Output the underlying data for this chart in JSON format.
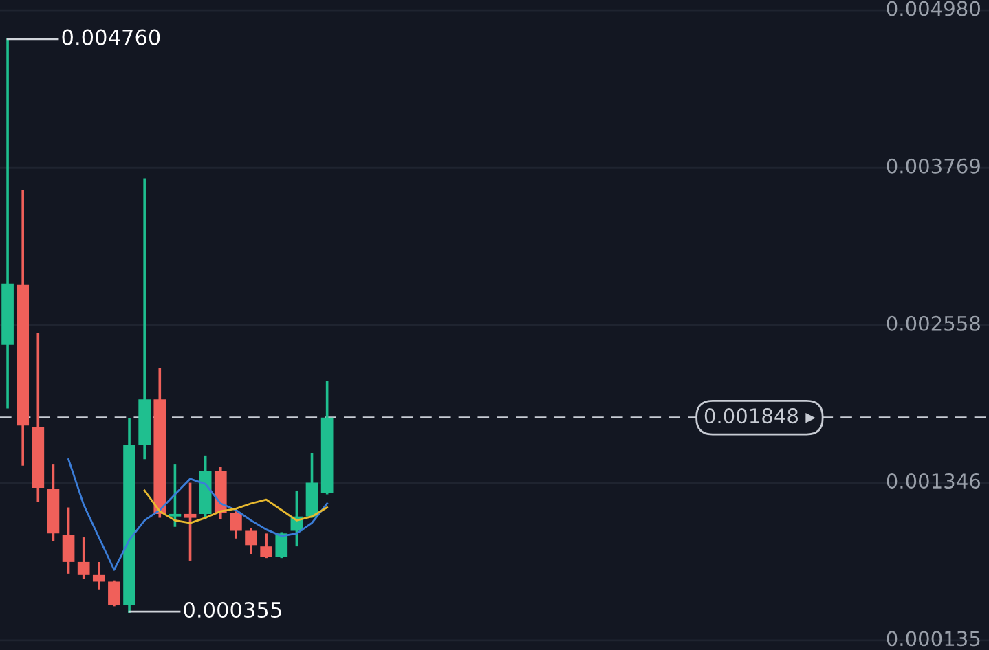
{
  "chart_data": {
    "type": "candlestick",
    "categories": [
      null,
      null,
      null,
      null,
      null,
      null,
      null,
      null,
      null,
      null,
      null,
      null,
      null,
      null,
      null,
      null,
      null,
      null,
      null,
      null,
      null,
      null,
      null,
      null,
      null,
      null,
      null,
      null,
      null,
      null,
      null,
      null,
      null,
      null,
      null,
      null,
      null,
      null,
      null,
      null,
      null,
      null,
      null,
      null,
      null,
      null,
      null,
      null,
      null,
      null,
      null,
      null,
      null,
      null,
      null,
      null,
      null,
      null,
      null,
      null,
      null,
      null,
      null,
      null,
      null
    ],
    "ohlc": [
      [
        0.002408,
        0.00476,
        0.001927,
        0.002878
      ],
      [
        0.002868,
        0.003589,
        0.001487,
        0.001787
      ],
      [
        0.001777,
        0.002488,
        0.001207,
        0.001307
      ],
      [
        0.001297,
        0.001477,
        0.000907,
        0.000957
      ],
      [
        0.000947,
        0.001147,
        0.000657,
        0.000737
      ],
      [
        0.000737,
        0.000917,
        0.000617,
        0.000637
      ],
      [
        0.000637,
        0.000727,
        0.000536,
        0.000586
      ],
      [
        0.000586,
        0.000586,
        0.000406,
        0.000406
      ],
      [
        0.000406,
        0.001837,
        0.000355,
        0.001637
      ],
      [
        0.001637,
        0.003679,
        0.001537,
        0.001988
      ],
      [
        0.001988,
        0.002218,
        0.001087,
        0.001107
      ],
      [
        0.001087,
        0.001477,
        0.001017,
        0.001107
      ],
      [
        0.001107,
        0.001337,
        0.000757,
        0.001077
      ],
      [
        0.001107,
        0.001547,
        0.001077,
        0.001437
      ],
      [
        0.001437,
        0.001457,
        0.001077,
        0.001117
      ],
      [
        0.001117,
        0.001117,
        0.000927,
        0.000977
      ],
      [
        0.000977,
        0.000987,
        0.000807,
        0.000867
      ],
      [
        0.000857,
        0.000947,
        0.000777,
        0.000777
      ],
      [
        0.000777,
        0.000957,
        0.000777,
        0.000957
      ],
      [
        0.000977,
        0.001277,
        0.000867,
        0.001087
      ],
      [
        0.001087,
        0.001567,
        0.001087,
        0.001347
      ],
      [
        0.001267,
        0.002118,
        0.001267,
        0.001848
      ],
      null,
      null,
      null,
      null,
      null,
      null,
      null,
      null,
      null,
      null,
      null,
      null,
      null,
      null,
      null,
      null,
      null,
      null,
      null,
      null,
      null,
      null,
      null,
      null,
      null,
      null,
      null,
      null,
      null,
      null,
      null,
      null,
      null,
      null,
      null,
      null,
      null,
      null,
      null,
      null,
      null,
      null,
      null
    ],
    "colors": [
      "#1fbf8f",
      "#f0605a",
      "#f0605a",
      "#f0605a",
      "#f0605a",
      "#f0605a",
      "#f0605a",
      "#f0605a",
      "#1fbf8f",
      "#1fbf8f",
      "#f0605a",
      "#1fbf8f",
      "#f0605a",
      "#1fbf8f",
      "#f0605a",
      "#f0605a",
      "#f0605a",
      "#f0605a",
      "#1fbf8f",
      "#1fbf8f",
      "#1fbf8f",
      "#1fbf8f",
      null,
      null,
      null,
      null,
      null,
      null,
      null,
      null,
      null,
      null,
      null,
      null,
      null,
      null,
      null,
      null,
      null,
      null,
      null,
      null,
      null,
      null,
      null,
      null,
      null,
      null,
      null,
      null,
      null,
      null,
      null,
      null,
      null,
      null,
      null,
      null,
      null,
      null,
      null,
      null,
      null,
      null,
      null
    ],
    "series": [
      {
        "type": "line",
        "color": "#3b7dd8",
        "values": [
          null,
          null,
          null,
          null,
          0.001527,
          0.001177,
          0.000927,
          0.000677,
          0.000907,
          0.001057,
          0.001137,
          0.001257,
          0.001377,
          0.001337,
          0.001187,
          0.001137,
          0.001057,
          0.000987,
          0.000937,
          0.000957,
          0.001037,
          0.001187,
          null,
          null,
          null,
          null,
          null,
          null,
          null,
          null,
          null,
          null,
          null,
          null,
          null,
          null,
          null,
          null,
          null,
          null,
          null,
          null,
          null,
          null,
          null,
          null,
          null,
          null,
          null,
          null,
          null,
          null,
          null,
          null,
          null,
          null,
          null,
          null,
          null,
          null,
          null,
          null,
          null,
          null,
          null
        ]
      },
      {
        "type": "line",
        "color": "#e8b92f",
        "values": [
          null,
          null,
          null,
          null,
          null,
          null,
          null,
          null,
          null,
          0.001287,
          0.001127,
          0.001057,
          0.001037,
          0.001077,
          0.001127,
          0.001147,
          0.001187,
          0.001217,
          0.001137,
          0.001057,
          0.001087,
          0.001157,
          null,
          null,
          null,
          null,
          null,
          null,
          null,
          null,
          null,
          null,
          null,
          null,
          null,
          null,
          null,
          null,
          null,
          null,
          null,
          null,
          null,
          null,
          null,
          null,
          null,
          null,
          null,
          null,
          null,
          null,
          null,
          null,
          null,
          null,
          null,
          null,
          null,
          null,
          null,
          null,
          null,
          null,
          null
        ]
      }
    ],
    "ylim": [
      6e-05,
      0.00506
    ],
    "yticks": [
      {
        "value": 0.00498,
        "label": "0.004980"
      },
      {
        "value": 0.003769,
        "label": "0.003769"
      },
      {
        "value": 0.002558,
        "label": "0.002558"
      },
      {
        "value": 0.001346,
        "label": "0.001346"
      },
      {
        "value": 0.000135,
        "label": "0.000135"
      }
    ],
    "tick_labels": "y",
    "grid": "y",
    "ref_lines": [
      {
        "axis": "y",
        "value": 0.001848,
        "label": "0.001848 ▸",
        "color": "#c8ccd4",
        "line_style": "dashed"
      }
    ],
    "annotations": [
      "0.004760",
      "0.000355"
    ]
  }
}
